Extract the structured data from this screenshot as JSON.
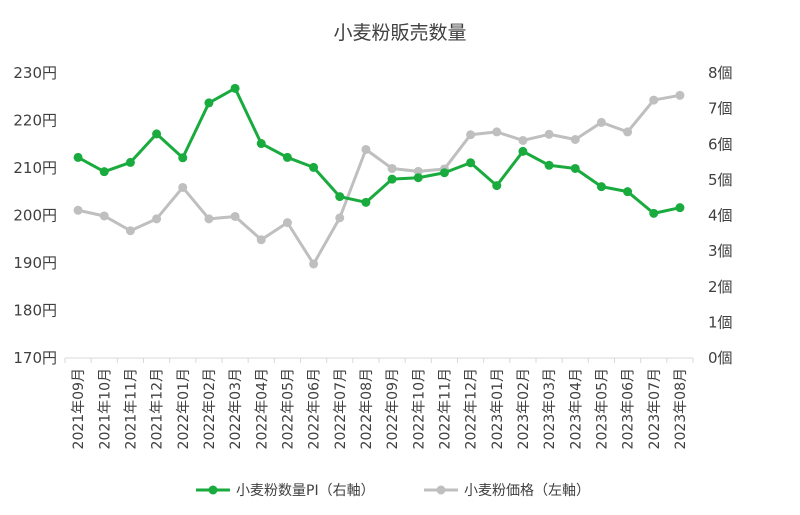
{
  "chart_data": {
    "type": "line",
    "title": "小麦粉販売数量",
    "categories": [
      "2021年09月",
      "2021年10月",
      "2021年11月",
      "2021年12月",
      "2022年01月",
      "2022年02月",
      "2022年03月",
      "2022年04月",
      "2022年05月",
      "2022年06月",
      "2022年07月",
      "2022年08月",
      "2022年09月",
      "2022年10月",
      "2022年11月",
      "2022年12月",
      "2023年01月",
      "2023年02月",
      "2023年03月",
      "2023年04月",
      "2023年05月",
      "2023年06月",
      "2023年07月",
      "2023年08月"
    ],
    "series": [
      {
        "name": "小麦粉数量PI（右軸）",
        "axis": "right",
        "color": "#1aab3f",
        "values": [
          5.63,
          5.23,
          5.49,
          6.29,
          5.62,
          7.16,
          7.57,
          6.02,
          5.63,
          5.35,
          4.53,
          4.37,
          5.02,
          5.06,
          5.2,
          5.48,
          4.84,
          5.8,
          5.41,
          5.32,
          4.81,
          4.67,
          4.06,
          4.22
        ]
      },
      {
        "name": "小麦粉価格（左軸）",
        "axis": "left",
        "color": "#bfbfbf",
        "values": [
          201.1,
          199.9,
          196.8,
          199.3,
          205.9,
          199.3,
          199.8,
          194.9,
          198.5,
          189.8,
          199.5,
          213.9,
          209.9,
          209.3,
          209.8,
          217.0,
          217.6,
          215.8,
          217.1,
          216.0,
          219.6,
          217.6,
          224.3,
          225.3
        ]
      }
    ],
    "y_left": {
      "min": 170,
      "max": 230,
      "step": 10,
      "suffix": "円"
    },
    "y_right": {
      "min": 0,
      "max": 8,
      "step": 1,
      "suffix": "個"
    },
    "legend": "bottom",
    "grid": false
  }
}
